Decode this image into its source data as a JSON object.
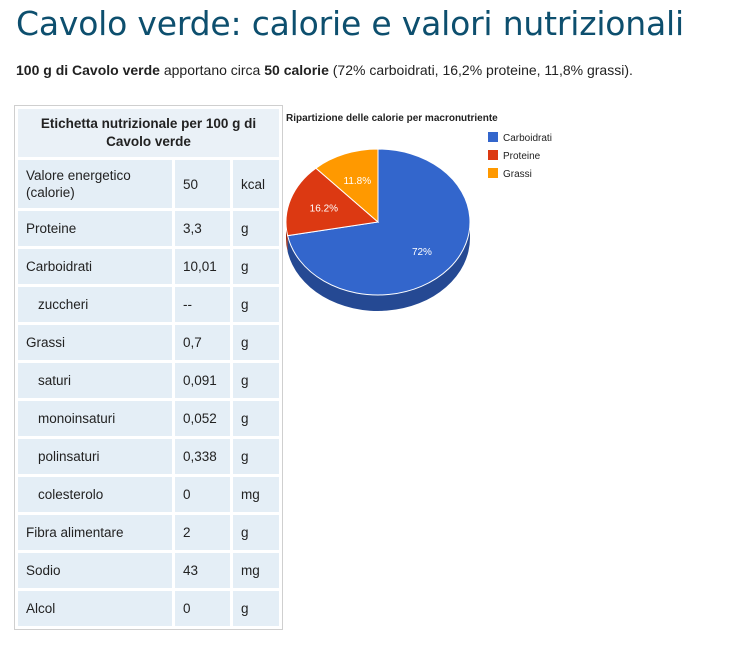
{
  "page": {
    "title": "Cavolo verde: calorie e valori nutrizionali",
    "intro": {
      "amount": "100 g di Cavolo verde",
      "text1": " apportano circa ",
      "calories": "50 calorie",
      "text2": " (72% carboidrati, 16,2% proteine, 11,8% grassi)."
    }
  },
  "table": {
    "header": "Etichetta nutrizionale per 100 g di Cavolo verde",
    "rows": [
      {
        "name": "Valore energetico (calorie)",
        "value": "50",
        "unit": "kcal"
      },
      {
        "name": "Proteine",
        "value": "3,3",
        "unit": "g"
      },
      {
        "name": "Carboidrati",
        "value": "10,01",
        "unit": "g"
      },
      {
        "name": "zuccheri",
        "value": "--",
        "unit": "g"
      },
      {
        "name": "Grassi",
        "value": "0,7",
        "unit": "g"
      },
      {
        "name": "saturi",
        "value": "0,091",
        "unit": "g"
      },
      {
        "name": "monoinsaturi",
        "value": "0,052",
        "unit": "g"
      },
      {
        "name": "polinsaturi",
        "value": "0,338",
        "unit": "g"
      },
      {
        "name": "colesterolo",
        "value": "0",
        "unit": "mg"
      },
      {
        "name": "Fibra alimentare",
        "value": "2",
        "unit": "g"
      },
      {
        "name": "Sodio",
        "value": "43",
        "unit": "mg"
      },
      {
        "name": "Alcol",
        "value": "0",
        "unit": "g"
      }
    ]
  },
  "chart_data": {
    "type": "pie",
    "title": "Ripartizione delle calorie per macronutriente",
    "legend_position": "top-right",
    "slices": [
      {
        "label": "Carboidrati",
        "value": 72,
        "display": "72%",
        "color": "#3366cc"
      },
      {
        "label": "Proteine",
        "value": 16.2,
        "display": "16.2%",
        "color": "#dc3912"
      },
      {
        "label": "Grassi",
        "value": 11.8,
        "display": "11.8%",
        "color": "#ff9900"
      }
    ]
  }
}
